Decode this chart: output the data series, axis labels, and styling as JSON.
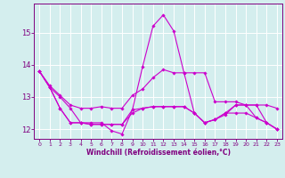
{
  "x": [
    0,
    1,
    2,
    3,
    4,
    5,
    6,
    7,
    8,
    9,
    10,
    11,
    12,
    13,
    14,
    15,
    16,
    17,
    18,
    19,
    20,
    21,
    22,
    23
  ],
  "series": [
    {
      "y": [
        13.8,
        13.35,
        13.05,
        12.75,
        12.65,
        12.65,
        12.7,
        12.65,
        12.65,
        13.05,
        13.25,
        13.6,
        13.85,
        13.75,
        13.75,
        13.75,
        13.75,
        12.85,
        12.85,
        12.85,
        12.75,
        12.75,
        12.75,
        12.65
      ],
      "color": "#cc00cc",
      "linewidth": 0.8,
      "marker": "D",
      "markersize": 1.8
    },
    {
      "y": [
        13.8,
        13.3,
        13.0,
        12.65,
        12.2,
        12.2,
        12.2,
        11.95,
        11.85,
        12.6,
        13.95,
        15.2,
        15.55,
        15.05,
        13.75,
        12.5,
        12.2,
        12.3,
        12.45,
        12.75,
        12.75,
        12.35,
        12.2,
        12.0
      ],
      "color": "#cc00cc",
      "linewidth": 0.8,
      "marker": "D",
      "markersize": 1.8
    },
    {
      "y": [
        13.8,
        13.3,
        12.65,
        12.2,
        12.2,
        12.15,
        12.15,
        12.15,
        12.15,
        12.6,
        12.65,
        12.7,
        12.7,
        12.7,
        12.7,
        12.5,
        12.2,
        12.3,
        12.5,
        12.75,
        12.75,
        12.75,
        12.2,
        12.0
      ],
      "color": "#cc00cc",
      "linewidth": 0.8,
      "marker": "D",
      "markersize": 1.8
    },
    {
      "y": [
        13.8,
        13.3,
        12.65,
        12.2,
        12.2,
        12.15,
        12.15,
        12.15,
        12.15,
        12.5,
        12.65,
        12.7,
        12.7,
        12.7,
        12.7,
        12.5,
        12.2,
        12.3,
        12.5,
        12.5,
        12.5,
        12.35,
        12.2,
        12.0
      ],
      "color": "#cc00cc",
      "linewidth": 0.8,
      "marker": "D",
      "markersize": 1.8
    }
  ],
  "xlabel": "Windchill (Refroidissement éolien,°C)",
  "xlim": [
    -0.5,
    23.5
  ],
  "ylim": [
    11.7,
    15.9
  ],
  "yticks": [
    12,
    13,
    14,
    15
  ],
  "xticks": [
    0,
    1,
    2,
    3,
    4,
    5,
    6,
    7,
    8,
    9,
    10,
    11,
    12,
    13,
    14,
    15,
    16,
    17,
    18,
    19,
    20,
    21,
    22,
    23
  ],
  "bg_color": "#d4eeee",
  "grid_color": "#ffffff",
  "axis_color": "#800080",
  "tick_color": "#800080",
  "label_color": "#800080"
}
